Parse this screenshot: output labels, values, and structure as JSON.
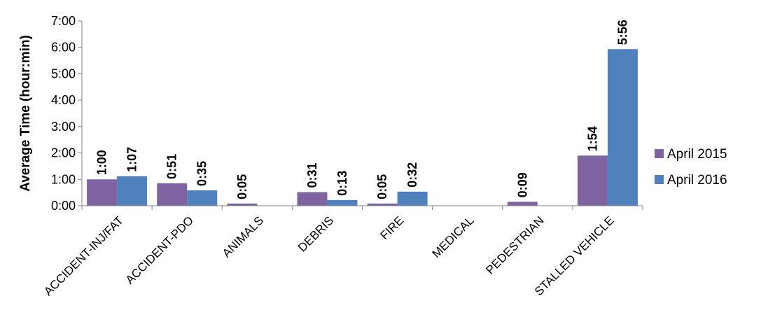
{
  "chart_data": {
    "type": "bar",
    "categories": [
      "ACCIDENT-INJ/FAT",
      "ACCIDENT-PDO",
      "ANIMALS",
      "DEBRIS",
      "FIRE",
      "MEDICAL",
      "PEDESTRIAN",
      "STALLED VEHICLE"
    ],
    "series": [
      {
        "name": "April 2015",
        "color": "#8064A2",
        "values": [
          1.0,
          0.85,
          0.0833,
          0.5167,
          0.0833,
          0,
          0.15,
          1.9
        ],
        "labels": [
          "1:00",
          "0:51",
          "0:05",
          "0:31",
          "0:05",
          "",
          "0:09",
          "1:54"
        ]
      },
      {
        "name": "April 2016",
        "color": "#4F81BD",
        "values": [
          1.1167,
          0.5833,
          0,
          0.2167,
          0.5333,
          0,
          0,
          5.9333
        ],
        "labels": [
          "1:07",
          "0:35",
          "",
          "0:13",
          "0:32",
          "",
          "",
          "5:56"
        ]
      }
    ],
    "yticks": [
      "0:00",
      "1:00",
      "2:00",
      "3:00",
      "4:00",
      "5:00",
      "6:00",
      "7:00"
    ],
    "ylim": [
      0,
      7
    ],
    "ylabel": "Average Time (hour:min)",
    "xlabel": "",
    "title": "",
    "grid": false,
    "legend_position": "right"
  }
}
